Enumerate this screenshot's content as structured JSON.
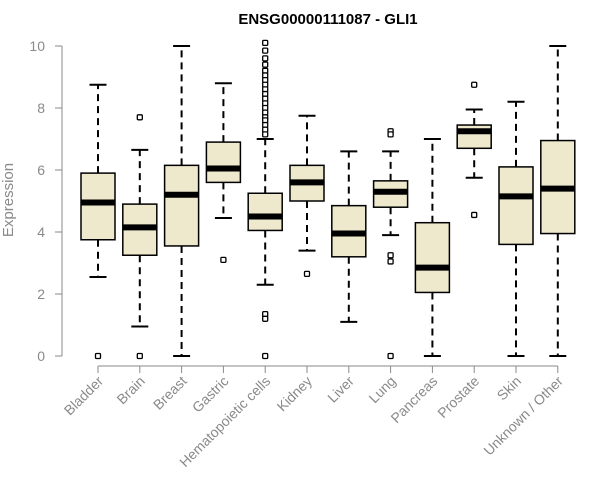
{
  "chart_data": {
    "type": "boxplot",
    "title": "ENSG00000111087 - GLI1",
    "xlabel": "",
    "ylabel": "Expression",
    "ylim": [
      0,
      10
    ],
    "yticks": [
      0,
      2,
      4,
      6,
      8,
      10
    ],
    "box_fill": "#EEE8CD",
    "line_color": "#000000",
    "axis_color": "#8a8a8a",
    "categories": [
      "Bladder",
      "Brain",
      "Breast",
      "Gastric",
      "Hematopoietic cells",
      "Kidney",
      "Liver",
      "Lung",
      "Pancreas",
      "Prostate",
      "Skin",
      "Unknown / Other"
    ],
    "boxes": [
      {
        "name": "Bladder",
        "whisker_low": 2.55,
        "q1": 3.75,
        "median": 4.95,
        "q3": 5.9,
        "whisker_high": 8.75,
        "outliers": [
          0
        ]
      },
      {
        "name": "Brain",
        "whisker_low": 0.95,
        "q1": 3.25,
        "median": 4.15,
        "q3": 4.9,
        "whisker_high": 6.65,
        "outliers": [
          7.7,
          0
        ]
      },
      {
        "name": "Breast",
        "whisker_low": 0,
        "q1": 3.55,
        "median": 5.2,
        "q3": 6.15,
        "whisker_high": 10,
        "outliers": []
      },
      {
        "name": "Gastric",
        "whisker_low": 4.45,
        "q1": 5.6,
        "median": 6.05,
        "q3": 6.9,
        "whisker_high": 8.8,
        "outliers": [
          3.1
        ]
      },
      {
        "name": "Hematopoietic cells",
        "whisker_low": 2.3,
        "q1": 4.05,
        "median": 4.5,
        "q3": 5.25,
        "whisker_high": 7.0,
        "outliers": [
          10.1,
          9.85,
          9.6,
          9.4,
          9.2,
          9.05,
          8.9,
          8.75,
          8.6,
          8.45,
          8.3,
          8.15,
          8.0,
          7.85,
          7.7,
          7.6,
          7.45,
          7.3,
          7.15,
          1.35,
          1.2,
          0
        ]
      },
      {
        "name": "Kidney",
        "whisker_low": 3.4,
        "q1": 5.0,
        "median": 5.6,
        "q3": 6.15,
        "whisker_high": 7.75,
        "outliers": [
          2.65
        ]
      },
      {
        "name": "Liver",
        "whisker_low": 1.1,
        "q1": 3.2,
        "median": 3.95,
        "q3": 4.85,
        "whisker_high": 6.6,
        "outliers": []
      },
      {
        "name": "Lung",
        "whisker_low": 3.9,
        "q1": 4.8,
        "median": 5.3,
        "q3": 5.65,
        "whisker_high": 6.6,
        "outliers": [
          7.25,
          7.15,
          3.25,
          3.05,
          0
        ]
      },
      {
        "name": "Pancreas",
        "whisker_low": 0,
        "q1": 2.05,
        "median": 2.85,
        "q3": 4.3,
        "whisker_high": 7.0,
        "outliers": []
      },
      {
        "name": "Prostate",
        "whisker_low": 5.75,
        "q1": 6.7,
        "median": 7.25,
        "q3": 7.45,
        "whisker_high": 7.95,
        "outliers": [
          8.75,
          4.55
        ]
      },
      {
        "name": "Skin",
        "whisker_low": 0,
        "q1": 3.6,
        "median": 5.15,
        "q3": 6.1,
        "whisker_high": 8.2,
        "outliers": []
      },
      {
        "name": "Unknown / Other",
        "whisker_low": 0,
        "q1": 3.95,
        "median": 5.4,
        "q3": 6.95,
        "whisker_high": 10,
        "outliers": []
      }
    ]
  }
}
